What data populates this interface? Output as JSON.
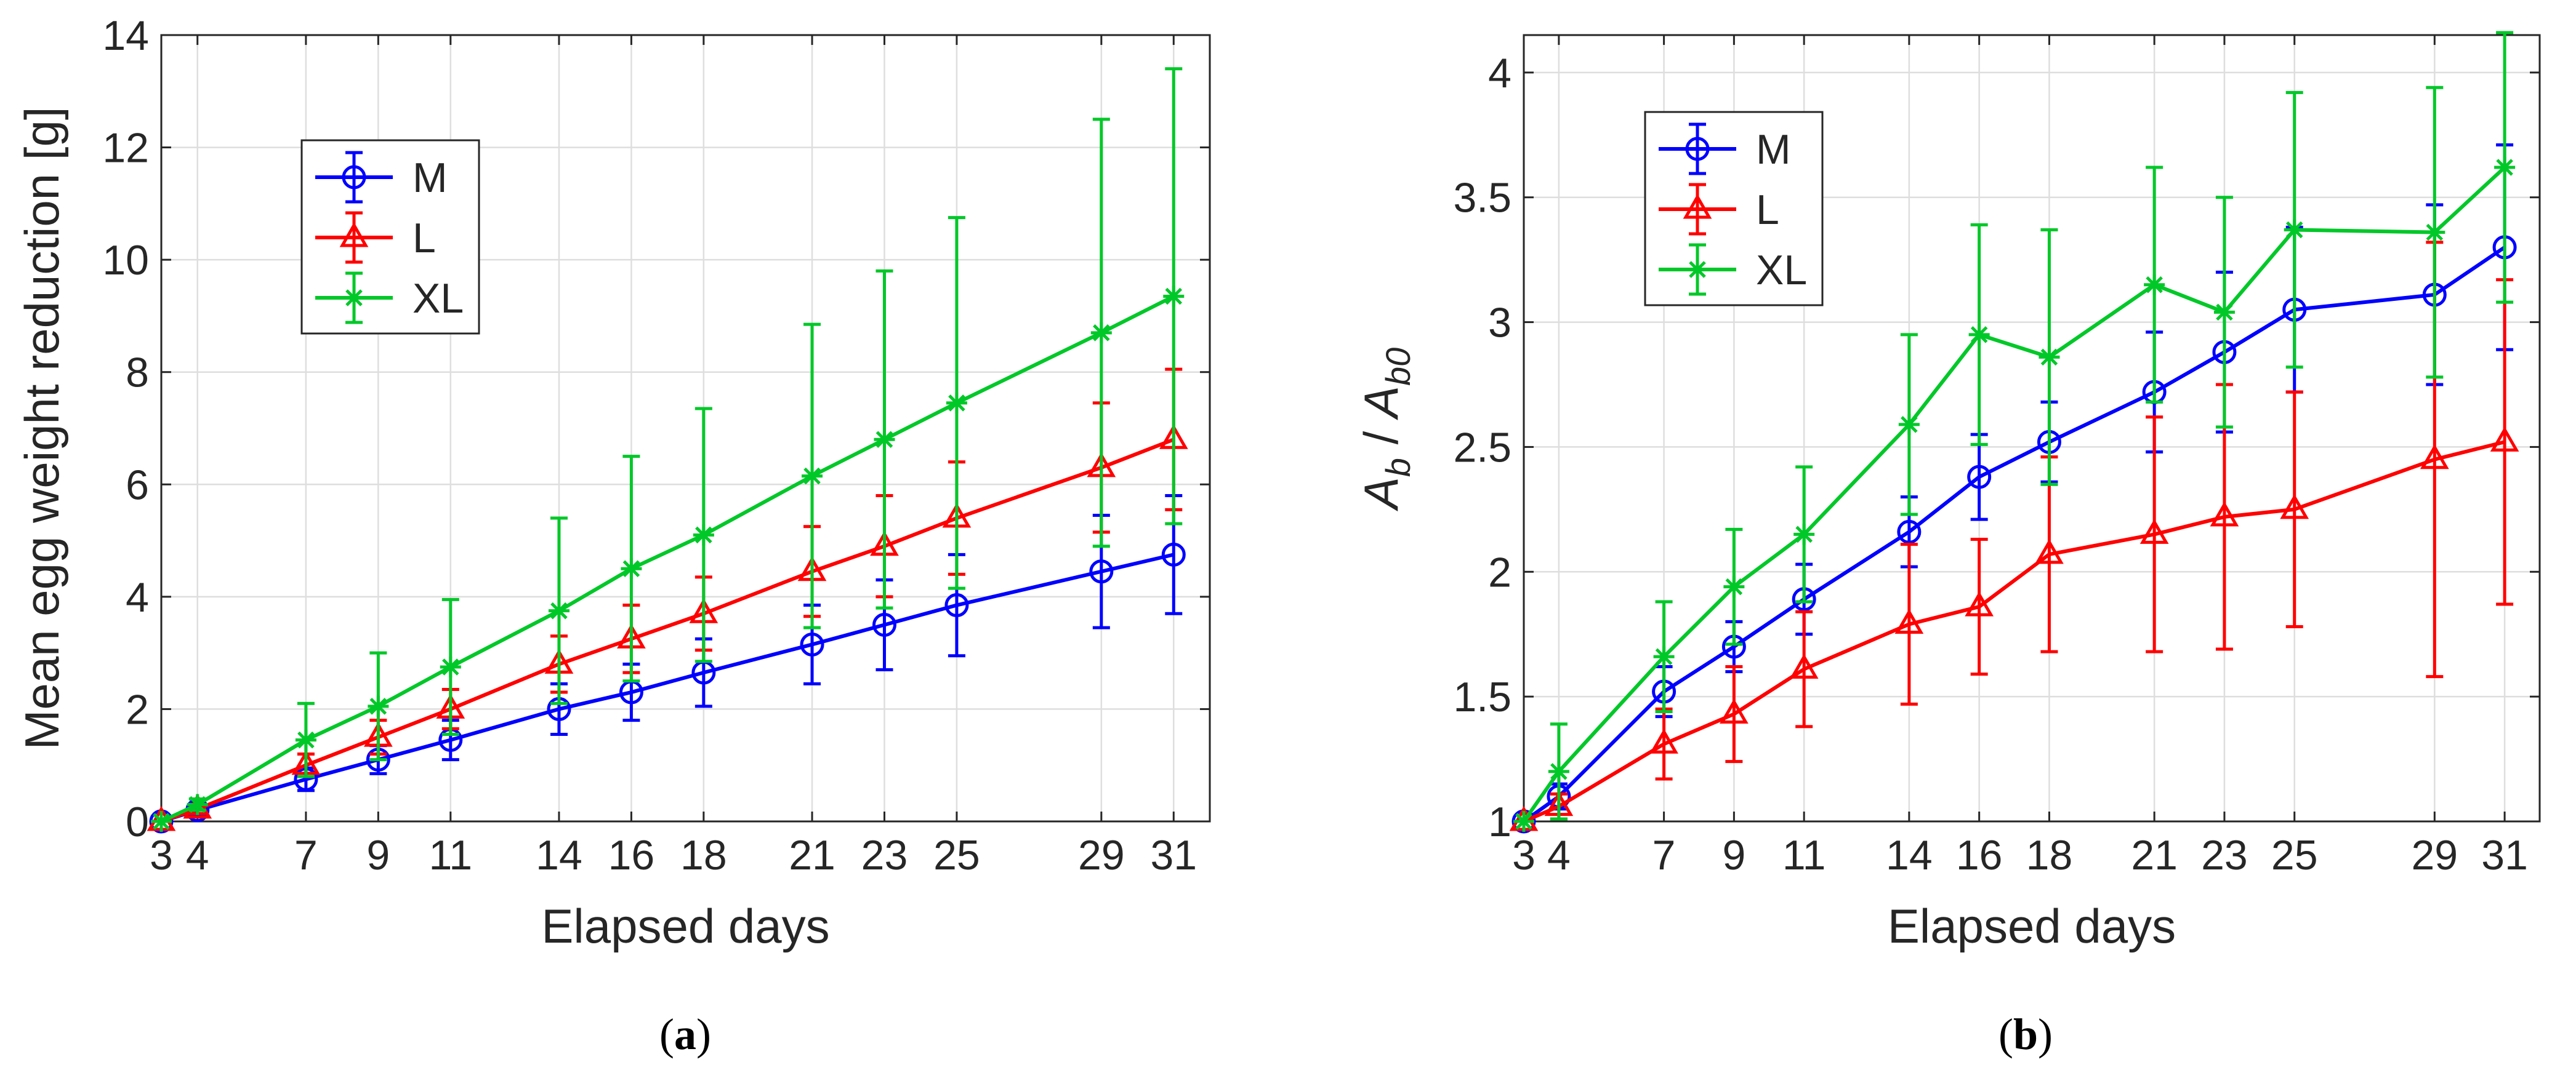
{
  "chart_data": [
    {
      "type": "line",
      "panel_label": "(a)",
      "title": "",
      "xlabel": "Elapsed days",
      "ylabel": "Mean egg weight reduction [g]",
      "xlim": [
        3,
        32
      ],
      "ylim": [
        0,
        14
      ],
      "xticks": [
        3,
        4,
        7,
        9,
        11,
        14,
        16,
        18,
        21,
        23,
        25,
        29,
        31
      ],
      "yticks": [
        0,
        2,
        4,
        6,
        8,
        10,
        12,
        14
      ],
      "grid": true,
      "legend_position": "upper-left",
      "x": [
        3,
        4,
        7,
        9,
        11,
        14,
        16,
        18,
        21,
        23,
        25,
        29,
        31
      ],
      "series": [
        {
          "name": "M",
          "color": "#0000ff",
          "marker": "circle",
          "values": [
            0,
            0.2,
            0.75,
            1.1,
            1.45,
            2.0,
            2.3,
            2.65,
            3.15,
            3.5,
            3.85,
            4.45,
            4.75
          ],
          "err_low": [
            0,
            0.08,
            0.2,
            0.25,
            0.35,
            0.45,
            0.5,
            0.6,
            0.7,
            0.8,
            0.9,
            1.0,
            1.05
          ],
          "err_high": [
            0,
            0.08,
            0.2,
            0.25,
            0.35,
            0.45,
            0.5,
            0.6,
            0.7,
            0.8,
            0.9,
            1.0,
            1.05
          ]
        },
        {
          "name": "L",
          "color": "#ff0000",
          "marker": "triangle",
          "values": [
            0,
            0.22,
            1.0,
            1.5,
            2.0,
            2.8,
            3.25,
            3.7,
            4.45,
            4.9,
            5.4,
            6.3,
            6.8
          ],
          "err_low": [
            0,
            0.08,
            0.2,
            0.3,
            0.35,
            0.5,
            0.6,
            0.65,
            0.8,
            0.9,
            1.0,
            1.15,
            1.25
          ],
          "err_high": [
            0,
            0.08,
            0.2,
            0.3,
            0.35,
            0.5,
            0.6,
            0.65,
            0.8,
            0.9,
            1.0,
            1.15,
            1.25
          ]
        },
        {
          "name": "XL",
          "color": "#00c828",
          "marker": "asterisk",
          "values": [
            0,
            0.3,
            1.45,
            2.05,
            2.75,
            3.75,
            4.5,
            5.1,
            6.15,
            6.8,
            7.45,
            8.7,
            9.35
          ],
          "err_low": [
            0,
            0.1,
            0.65,
            0.95,
            1.2,
            1.65,
            2.0,
            2.25,
            2.7,
            3.0,
            3.3,
            3.8,
            4.05
          ],
          "err_high": [
            0,
            0.1,
            0.65,
            0.95,
            1.2,
            1.65,
            2.0,
            2.25,
            2.7,
            3.0,
            3.3,
            3.8,
            4.05
          ]
        }
      ]
    },
    {
      "type": "line",
      "panel_label": "(b)",
      "title": "",
      "xlabel": "Elapsed days",
      "ylabel": "Ab / Ab0",
      "ylabel_parts": {
        "a": "A",
        "b": "b",
        "slash": " / ",
        "a2": "A",
        "b2": "b0"
      },
      "xlim": [
        3,
        32
      ],
      "ylim": [
        1,
        4.15
      ],
      "xticks": [
        3,
        4,
        7,
        9,
        11,
        14,
        16,
        18,
        21,
        23,
        25,
        29,
        31
      ],
      "yticks": [
        1,
        1.5,
        2,
        2.5,
        3,
        3.5,
        4
      ],
      "grid": true,
      "legend_position": "upper-left",
      "x": [
        3,
        4,
        7,
        9,
        11,
        14,
        16,
        18,
        21,
        23,
        25,
        29,
        31
      ],
      "series": [
        {
          "name": "M",
          "color": "#0000ff",
          "marker": "circle",
          "values": [
            1.0,
            1.1,
            1.52,
            1.7,
            1.89,
            2.16,
            2.38,
            2.52,
            2.72,
            2.88,
            3.05,
            3.11,
            3.3
          ],
          "err_low": [
            0,
            0.05,
            0.1,
            0.1,
            0.14,
            0.14,
            0.17,
            0.16,
            0.24,
            0.32,
            0.33,
            0.36,
            0.41
          ],
          "err_high": [
            0,
            0.05,
            0.1,
            0.1,
            0.14,
            0.14,
            0.17,
            0.16,
            0.24,
            0.32,
            0.33,
            0.36,
            0.41
          ]
        },
        {
          "name": "L",
          "color": "#ff0000",
          "marker": "triangle",
          "values": [
            1.0,
            1.06,
            1.31,
            1.43,
            1.61,
            1.79,
            1.86,
            2.07,
            2.15,
            2.22,
            2.25,
            2.45,
            2.52
          ],
          "err_low": [
            0,
            0.05,
            0.14,
            0.19,
            0.23,
            0.32,
            0.27,
            0.39,
            0.47,
            0.53,
            0.47,
            0.87,
            0.65
          ],
          "err_high": [
            0,
            0.05,
            0.14,
            0.19,
            0.23,
            0.32,
            0.27,
            0.39,
            0.47,
            0.53,
            0.47,
            0.87,
            0.65
          ]
        },
        {
          "name": "XL",
          "color": "#00c828",
          "marker": "asterisk",
          "values": [
            1.0,
            1.2,
            1.66,
            1.94,
            2.15,
            2.59,
            2.95,
            2.86,
            3.15,
            3.04,
            3.37,
            3.36,
            3.62
          ],
          "err_low": [
            0,
            0.19,
            0.22,
            0.23,
            0.27,
            0.36,
            0.44,
            0.51,
            0.47,
            0.46,
            0.55,
            0.58,
            0.54
          ],
          "err_high": [
            0,
            0.19,
            0.22,
            0.23,
            0.27,
            0.36,
            0.44,
            0.51,
            0.47,
            0.46,
            0.55,
            0.58,
            0.54
          ]
        }
      ]
    }
  ]
}
